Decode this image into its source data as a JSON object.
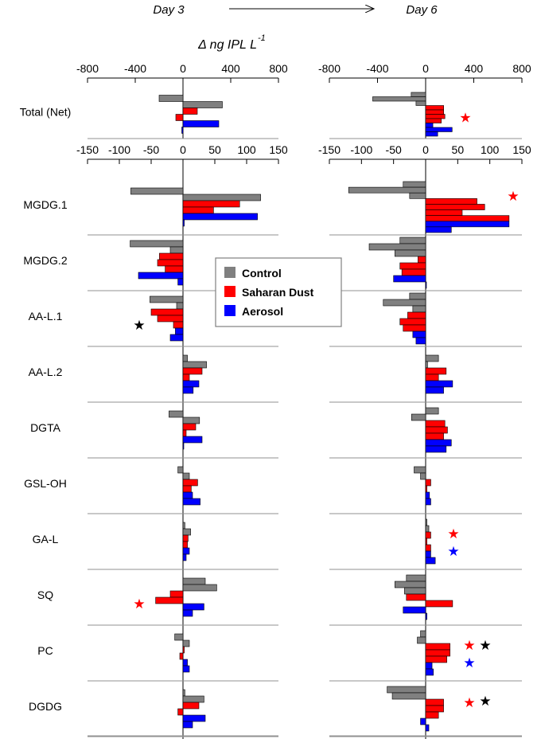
{
  "header": {
    "day_left": "Day 3",
    "day_right": "Day 6",
    "unit_prefix": "Δ ng IPL L",
    "unit_exponent": "-1"
  },
  "legend": {
    "items": [
      {
        "label": "Control",
        "color": "#808080"
      },
      {
        "label": "Saharan Dust",
        "color": "#ff0000"
      },
      {
        "label": "Aerosol",
        "color": "#0000ff"
      }
    ]
  },
  "chart_data": {
    "type": "bar",
    "orientation": "horizontal",
    "title": "",
    "xlabel": "Δ ng IPL L-1",
    "series_names": [
      "Control",
      "Saharan Dust",
      "Aerosol"
    ],
    "series_colors": [
      "#808080",
      "#ff0000",
      "#0000ff"
    ],
    "star_colors": {
      "red": "#ff0000",
      "blue": "#0000ff",
      "black": "#000000"
    },
    "panels": [
      {
        "day": "Day 3",
        "scales": [
          {
            "xlim": [
              -800,
              800
            ],
            "ticks": [
              "-800",
              "-400",
              "0",
              "400",
              "800"
            ]
          },
          {
            "xlim": [
              -150,
              150
            ],
            "ticks": [
              "-150",
              "-100",
              "-50",
              "0",
              "50",
              "100",
              "150"
            ]
          }
        ]
      },
      {
        "day": "Day 6",
        "scales": [
          {
            "xlim": [
              -800,
              800
            ],
            "ticks": [
              "-800",
              "-400",
              "0",
              "400",
              "800"
            ]
          },
          {
            "xlim": [
              -150,
              150
            ],
            "ticks": [
              "-150",
              "-100",
              "-50",
              "0",
              "50",
              "100",
              "150"
            ]
          }
        ]
      }
    ],
    "categories": [
      {
        "name": "Total (Net)",
        "scale": 0,
        "day3": {
          "Control": [
            -200,
            330
          ],
          "Saharan Dust": [
            120,
            -60
          ],
          "Aerosol": [
            300,
            -10
          ]
        },
        "day6": {
          "Control": [
            -120,
            -440,
            -80
          ],
          "Saharan Dust": [
            150,
            150,
            160,
            130
          ],
          "Aerosol": [
            60,
            220,
            100
          ]
        },
        "stars": {
          "day3": [],
          "day6": [
            "red"
          ]
        }
      },
      {
        "name": "MGDG.1",
        "scale": 1,
        "day3": {
          "Control": [
            -82,
            122
          ],
          "Saharan Dust": [
            89,
            48
          ],
          "Aerosol": [
            117,
            2
          ]
        },
        "day6": {
          "Control": [
            -35,
            -120,
            -25
          ],
          "Saharan Dust": [
            80,
            92,
            57,
            130
          ],
          "Aerosol": [
            130,
            40
          ]
        },
        "stars": {
          "day3": [],
          "day6": [
            "red"
          ]
        }
      },
      {
        "name": "MGDG.2",
        "scale": 1,
        "day3": {
          "Control": [
            -83,
            -20
          ],
          "Saharan Dust": [
            -37,
            -40,
            -28
          ],
          "Aerosol": [
            -70,
            -8
          ]
        },
        "day6": {
          "Control": [
            -40,
            -88,
            -48
          ],
          "Saharan Dust": [
            -12,
            -40,
            -37
          ],
          "Aerosol": [
            -50,
            0
          ]
        },
        "stars": {
          "day3": [],
          "day6": []
        }
      },
      {
        "name": "AA-L.1",
        "scale": 1,
        "day3": {
          "Control": [
            -52,
            -10
          ],
          "Saharan Dust": [
            -50,
            -40,
            -15
          ],
          "Aerosol": [
            -12,
            -20
          ]
        },
        "day6": {
          "Control": [
            -25,
            -66,
            -20
          ],
          "Saharan Dust": [
            -28,
            -40,
            -35
          ],
          "Aerosol": [
            -20,
            -15
          ]
        },
        "stars": {
          "day3": [
            "black"
          ],
          "day6": []
        }
      },
      {
        "name": "AA-L.2",
        "scale": 1,
        "day3": {
          "Control": [
            7,
            37
          ],
          "Saharan Dust": [
            30,
            10
          ],
          "Aerosol": [
            25,
            16
          ]
        },
        "day6": {
          "Control": [
            20,
            3
          ],
          "Saharan Dust": [
            32,
            20
          ],
          "Aerosol": [
            42,
            28
          ]
        },
        "stars": {
          "day3": [],
          "day6": []
        }
      },
      {
        "name": "DGTA",
        "scale": 1,
        "day3": {
          "Control": [
            -22,
            26
          ],
          "Saharan Dust": [
            20,
            5
          ],
          "Aerosol": [
            30,
            0
          ]
        },
        "day6": {
          "Control": [
            20,
            -22
          ],
          "Saharan Dust": [
            30,
            34,
            28
          ],
          "Aerosol": [
            40,
            32
          ]
        },
        "stars": {
          "day3": [],
          "day6": []
        }
      },
      {
        "name": "GSL-OH",
        "scale": 1,
        "day3": {
          "Control": [
            -8,
            10
          ],
          "Saharan Dust": [
            23,
            13
          ],
          "Aerosol": [
            15,
            27
          ]
        },
        "day6": {
          "Control": [
            -18,
            -8
          ],
          "Saharan Dust": [
            8,
            2
          ],
          "Aerosol": [
            6,
            8
          ]
        },
        "stars": {
          "day3": [],
          "day6": []
        }
      },
      {
        "name": "GA-L",
        "scale": 1,
        "day3": {
          "Control": [
            3,
            12
          ],
          "Saharan Dust": [
            8,
            7
          ],
          "Aerosol": [
            10,
            5
          ]
        },
        "day6": {
          "Control": [
            2,
            5
          ],
          "Saharan Dust": [
            8,
            2,
            8
          ],
          "Aerosol": [
            8,
            15
          ]
        },
        "stars": {
          "day3": [],
          "day6": [
            "red",
            "blue"
          ]
        }
      },
      {
        "name": "SQ",
        "scale": 1,
        "day3": {
          "Control": [
            35,
            53
          ],
          "Saharan Dust": [
            -20,
            -43
          ],
          "Aerosol": [
            33,
            15
          ]
        },
        "day6": {
          "Control": [
            -30,
            -48,
            -33
          ],
          "Saharan Dust": [
            -30,
            42
          ],
          "Aerosol": [
            -35,
            2
          ]
        },
        "stars": {
          "day3": [
            "red"
          ],
          "day6": []
        }
      },
      {
        "name": "PC",
        "scale": 1,
        "day3": {
          "Control": [
            -13,
            10
          ],
          "Saharan Dust": [
            2,
            -5
          ],
          "Aerosol": [
            7,
            10
          ]
        },
        "day6": {
          "Control": [
            -8,
            -13
          ],
          "Saharan Dust": [
            38,
            38,
            33
          ],
          "Aerosol": [
            10,
            12
          ]
        },
        "stars": {
          "day3": [],
          "day6": [
            "red",
            "black",
            "blue"
          ]
        }
      },
      {
        "name": "DGDG",
        "scale": 1,
        "day3": {
          "Control": [
            3,
            33
          ],
          "Saharan Dust": [
            25,
            -8
          ],
          "Aerosol": [
            35,
            15
          ]
        },
        "day6": {
          "Control": [
            -60,
            -52
          ],
          "Saharan Dust": [
            28,
            28,
            20
          ],
          "Aerosol": [
            -8,
            5
          ]
        },
        "stars": {
          "day3": [],
          "day6": [
            "red",
            "black"
          ]
        }
      }
    ]
  }
}
